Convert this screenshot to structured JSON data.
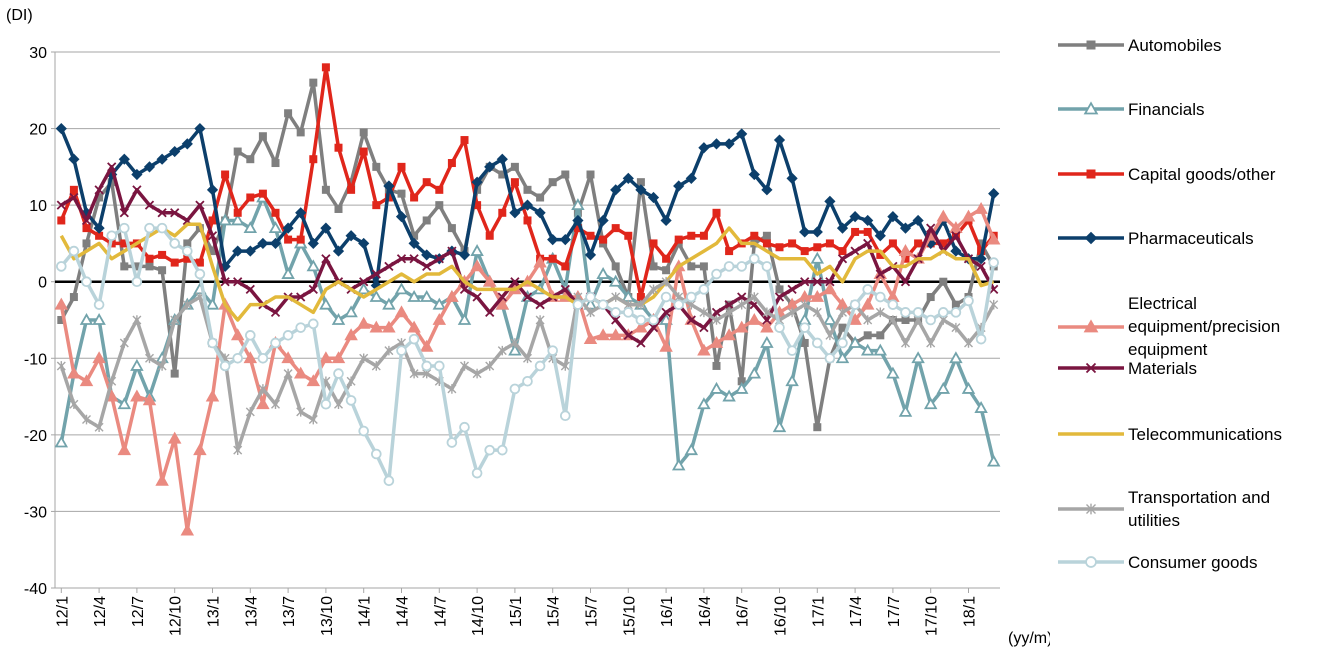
{
  "chart_data": {
    "type": "line",
    "y_label": "(DI)",
    "x_label": "(yy/m)",
    "categories": [
      "12/1",
      null,
      null,
      "12/4",
      null,
      null,
      "12/7",
      null,
      null,
      "12/10",
      null,
      null,
      "13/1",
      null,
      null,
      "13/4",
      null,
      null,
      "13/7",
      null,
      null,
      "13/10",
      null,
      null,
      "14/1",
      null,
      null,
      "14/4",
      null,
      null,
      "14/7",
      null,
      null,
      "14/10",
      null,
      null,
      "15/1",
      null,
      null,
      "15/4",
      null,
      null,
      "15/7",
      null,
      null,
      "15/10",
      null,
      null,
      "16/1",
      null,
      null,
      "16/4",
      null,
      null,
      "16/7",
      null,
      null,
      "16/10",
      null,
      null,
      "17/1",
      null,
      null,
      "17/4",
      null,
      null,
      "17/7",
      null,
      null,
      "17/10",
      null,
      null,
      "18/1",
      null,
      null
    ],
    "ylim": [
      -40,
      30
    ],
    "yticks": [
      -40,
      -30,
      -20,
      -10,
      0,
      10,
      20,
      30
    ],
    "grid": true,
    "series": [
      {
        "name": "Automobiles",
        "color": "#7f7f7f",
        "marker": "square",
        "values": [
          -5,
          -2,
          5,
          11,
          13,
          2,
          2,
          2,
          1.5,
          -12,
          5,
          7,
          4,
          8,
          17,
          16,
          19,
          15.5,
          22,
          19.5,
          26,
          12,
          9.5,
          13,
          19.5,
          15,
          12,
          11.5,
          6,
          8,
          10,
          7,
          4,
          12,
          15,
          14,
          15,
          12,
          11,
          13,
          14,
          9,
          14,
          5,
          2,
          -2,
          13,
          2,
          1.5,
          5,
          2,
          2,
          -11,
          -3,
          -13,
          5,
          6,
          -1,
          -3,
          -8,
          -19,
          -10,
          -6,
          -8,
          -7,
          -7,
          -5,
          -5,
          -5,
          -2,
          0,
          -3,
          -2,
          5,
          2
        ]
      },
      {
        "name": "Financials",
        "color": "#72a3ab",
        "marker": "triangle-open",
        "values": [
          -21,
          -12,
          -5,
          -5,
          -15,
          -16,
          -11,
          -15,
          -10,
          -5,
          -3,
          -1,
          -3,
          8,
          8,
          7,
          11,
          7,
          1,
          5,
          2,
          -3,
          -5,
          -4,
          -1,
          -2,
          -3,
          -1,
          -2,
          -2,
          -3,
          -2,
          -5,
          4,
          0,
          -3,
          -9,
          -2,
          -1,
          3,
          -1,
          10,
          -3,
          1,
          0,
          -2,
          -3,
          -5,
          -5,
          -24,
          -22,
          -16,
          -14,
          -15,
          -14,
          -12,
          -8,
          -19,
          -13,
          -5,
          3,
          -5,
          -10,
          -8,
          -9,
          -9,
          -12,
          -17,
          -10,
          -16,
          -14,
          -10,
          -14,
          -16.5,
          -23.5
        ]
      },
      {
        "name": "Capital goods/other",
        "color": "#e0261b",
        "marker": "square",
        "values": [
          8,
          12,
          7,
          6,
          5,
          5,
          5,
          3,
          3.5,
          2.5,
          3,
          2.5,
          8,
          14,
          9,
          11,
          11.5,
          9,
          5.5,
          5.5,
          16,
          28,
          17.5,
          12,
          17,
          10,
          11,
          15,
          11,
          13,
          12,
          15.5,
          18.5,
          10,
          6,
          9,
          13,
          8,
          3,
          3,
          2,
          7,
          6,
          5.5,
          7,
          6,
          -2,
          5,
          3,
          5.5,
          6,
          6,
          9,
          4,
          5,
          6,
          5,
          4.5,
          5,
          4,
          4.5,
          5,
          4,
          6.5,
          6.5,
          3.5,
          5,
          3,
          5,
          5,
          5,
          6,
          8,
          4,
          6
        ]
      },
      {
        "name": "Pharmaceuticals",
        "color": "#0c3f6b",
        "marker": "diamond",
        "values": [
          20,
          16,
          9,
          7,
          14,
          16,
          14,
          15,
          16,
          17,
          18,
          20,
          12,
          2,
          4,
          4,
          5,
          5,
          7,
          9,
          5,
          7,
          4,
          6,
          5,
          -0.5,
          12.5,
          8.5,
          5,
          3.5,
          3,
          4,
          3.5,
          13,
          15,
          16,
          9,
          10,
          9,
          5.5,
          5.5,
          8,
          3.5,
          8,
          12,
          13.5,
          12,
          11,
          8,
          12.5,
          13.5,
          17.5,
          18,
          18,
          19.3,
          14,
          12,
          18.5,
          13.5,
          6.5,
          6.5,
          10.5,
          7,
          8.5,
          8,
          6,
          8.5,
          7,
          8,
          5,
          8,
          4,
          3,
          3,
          11.5
        ]
      },
      {
        "name": "Electrical equipment/precision equipment",
        "color": "#ea8a80",
        "marker": "triangle",
        "values": [
          -3,
          -12,
          -13,
          -10,
          -15,
          -22,
          -15,
          -15.5,
          -26,
          -20.5,
          -32.5,
          -22,
          -15,
          -3,
          -7,
          -10,
          -16,
          -8,
          -10,
          -12,
          -13,
          -10,
          -10,
          -7,
          -5.5,
          -6,
          -6,
          -4,
          -6,
          -8.5,
          -5,
          -2,
          0,
          2,
          0,
          -3,
          -1,
          0,
          2.5,
          -2,
          -2,
          -2,
          -7.5,
          -7,
          -7,
          -7,
          -6,
          -5,
          -8.5,
          2,
          -5,
          -9,
          -8,
          -7,
          -6,
          -5,
          -6,
          -4,
          -3,
          -2,
          -2,
          -1,
          -3,
          -5,
          -3,
          1,
          -2,
          4,
          3,
          6,
          8.5,
          7,
          8.5,
          9.5,
          5.5
        ]
      },
      {
        "name": "Materials",
        "color": "#7a1540",
        "marker": "x",
        "values": [
          10,
          11,
          8,
          12,
          15,
          9,
          12,
          10,
          9,
          9,
          8,
          10,
          6,
          0,
          0,
          -1,
          -3,
          -4,
          -2,
          -2,
          -1,
          3,
          0,
          -1,
          0,
          1,
          2,
          3,
          3,
          2,
          3,
          4,
          -1,
          -2,
          -4,
          -2,
          0,
          -2,
          -3,
          -2,
          -1,
          -3,
          -2,
          -3,
          -5,
          -7,
          -8,
          -6,
          -4,
          -3,
          -5,
          -6,
          -4,
          -3,
          -2,
          -3,
          -5,
          -2,
          -1,
          0,
          0,
          0,
          3,
          4,
          5,
          1,
          2,
          0,
          3,
          7,
          4,
          6,
          3,
          2,
          -1
        ]
      },
      {
        "name": "Telecommunications",
        "color": "#e2b93b",
        "marker": "none",
        "values": [
          6,
          3,
          4,
          5,
          3,
          4,
          5,
          6,
          7,
          6,
          7.5,
          7.5,
          2,
          -3,
          -5,
          -3,
          -3,
          -2,
          -2,
          -3,
          -4,
          -1,
          0,
          -1,
          -2,
          -1,
          0,
          1,
          0,
          1,
          1,
          2,
          0,
          -1,
          -1,
          -1,
          -1,
          0,
          -1,
          -2,
          -2,
          -3,
          -2,
          -3,
          -2,
          -3,
          -3,
          -2,
          0,
          2,
          3,
          4,
          5,
          7,
          5,
          5,
          4,
          3,
          3,
          3,
          1,
          2,
          0,
          3,
          4,
          4,
          2,
          2,
          3,
          3,
          4,
          3,
          3,
          -0.5,
          0
        ]
      },
      {
        "name": "Transportation and utilities",
        "color": "#a6a6a6",
        "marker": "asterisk",
        "values": [
          -11,
          -16,
          -18,
          -19,
          -13,
          -8,
          -5,
          -10,
          -11,
          -5,
          -3,
          -2,
          -8,
          -10,
          -22,
          -17,
          -14,
          -16,
          -12,
          -17,
          -18,
          -13,
          -16,
          -13,
          -10,
          -11,
          -9,
          -8,
          -12,
          -12,
          -13,
          -14,
          -11,
          -12,
          -11,
          -9,
          -8,
          -10,
          -5,
          -10,
          -11,
          -2,
          -4,
          -3,
          -2,
          -3,
          -3,
          -1,
          0,
          -2,
          -3,
          -4,
          -5,
          -4,
          -3,
          -2,
          -4,
          -5,
          -4,
          -3,
          -4,
          -7,
          -4,
          -3,
          -5,
          -4,
          -5,
          -8,
          -5,
          -8,
          -5,
          -6,
          -8,
          -6,
          -3
        ]
      },
      {
        "name": "Consumer goods",
        "color": "#b9d3da",
        "marker": "circle-open",
        "values": [
          2,
          4,
          0,
          -3,
          6,
          7,
          0,
          7,
          7,
          5,
          4,
          1,
          -8,
          -11,
          -10,
          -7,
          -10,
          -8,
          -7,
          -6,
          -5.5,
          -16,
          -12,
          -15.5,
          -19.5,
          -22.5,
          -26,
          -9,
          -7.5,
          -11,
          -11,
          -21,
          -19,
          -25,
          -22,
          -22,
          -14,
          -13,
          -11,
          -9,
          -17.5,
          -3,
          -2,
          -3,
          -4,
          -4,
          -5,
          -5,
          -2,
          -3,
          -2,
          -1,
          1,
          2,
          2,
          3,
          2,
          -6,
          -9,
          -6,
          -8,
          -10,
          -8,
          -3,
          -1,
          -2,
          -3,
          -4,
          -4,
          -5,
          -4,
          -4,
          -2.5,
          -7.5,
          2.5
        ]
      }
    ]
  }
}
